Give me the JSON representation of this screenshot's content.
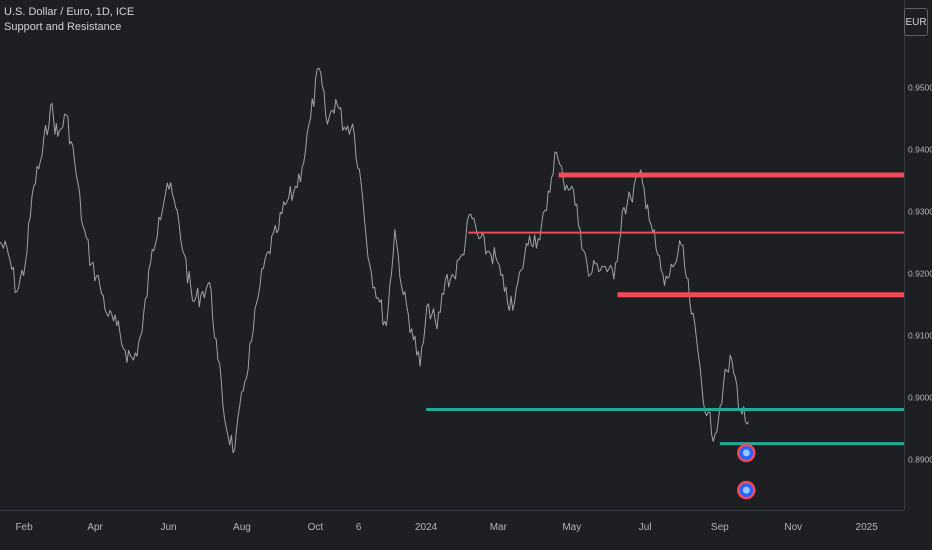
{
  "header": {
    "title": "U.S. Dollar / Euro, 1D, ICE",
    "indicator": "Support and Resistance"
  },
  "currency_button": "EUR",
  "colors": {
    "background": "#1e1f22",
    "price_line": "#9ea1a8",
    "resistance": "#f24a5b",
    "support": "#22ab94",
    "axis_text": "#b2b5be",
    "axis_line": "#363a45"
  },
  "chart_data": {
    "type": "line",
    "ylim": [
      0.8818,
      0.964
    ],
    "y_ticks": [
      0.89,
      0.9,
      0.91,
      0.92,
      0.93,
      0.94,
      0.95
    ],
    "y_tick_labels": [
      "0.8900",
      "0.9000",
      "0.9100",
      "0.9200",
      "0.9300",
      "0.9400",
      "0.9500"
    ],
    "x_range": [
      "2023-01-12",
      "2025-02-01"
    ],
    "x_ticks": [
      {
        "label": "Feb",
        "date": "2023-02-01"
      },
      {
        "label": "Apr",
        "date": "2023-04-01"
      },
      {
        "label": "Jun",
        "date": "2023-06-01"
      },
      {
        "label": "Aug",
        "date": "2023-08-01"
      },
      {
        "label": "Oct",
        "date": "2023-10-01"
      },
      {
        "label": "6",
        "date": "2023-11-06"
      },
      {
        "label": "2024",
        "date": "2024-01-01"
      },
      {
        "label": "Mar",
        "date": "2024-03-01"
      },
      {
        "label": "May",
        "date": "2024-05-01"
      },
      {
        "label": "Jul",
        "date": "2024-07-01"
      },
      {
        "label": "Sep",
        "date": "2024-09-01"
      },
      {
        "label": "Nov",
        "date": "2024-11-01"
      },
      {
        "label": "2025",
        "date": "2025-01-01"
      }
    ],
    "series": [
      {
        "points": [
          [
            "2023-01-12",
            0.925
          ],
          [
            "2023-01-19",
            0.923
          ],
          [
            "2023-01-26",
            0.917
          ],
          [
            "2023-02-02",
            0.9215
          ],
          [
            "2023-02-09",
            0.934
          ],
          [
            "2023-02-16",
            0.939
          ],
          [
            "2023-02-23",
            0.947
          ],
          [
            "2023-03-01",
            0.942
          ],
          [
            "2023-03-08",
            0.9455
          ],
          [
            "2023-03-15",
            0.938
          ],
          [
            "2023-03-22",
            0.9275
          ],
          [
            "2023-03-29",
            0.9215
          ],
          [
            "2023-04-05",
            0.918
          ],
          [
            "2023-04-12",
            0.913
          ],
          [
            "2023-04-19",
            0.9115
          ],
          [
            "2023-04-26",
            0.9075
          ],
          [
            "2023-05-03",
            0.906
          ],
          [
            "2023-05-10",
            0.9105
          ],
          [
            "2023-05-17",
            0.9215
          ],
          [
            "2023-05-24",
            0.929
          ],
          [
            "2023-05-31",
            0.9345
          ],
          [
            "2023-06-07",
            0.9305
          ],
          [
            "2023-06-14",
            0.923
          ],
          [
            "2023-06-21",
            0.9155
          ],
          [
            "2023-06-28",
            0.9165
          ],
          [
            "2023-07-05",
            0.9185
          ],
          [
            "2023-07-12",
            0.906
          ],
          [
            "2023-07-19",
            0.895
          ],
          [
            "2023-07-26",
            0.8915
          ],
          [
            "2023-08-02",
            0.901
          ],
          [
            "2023-08-09",
            0.909
          ],
          [
            "2023-08-16",
            0.918
          ],
          [
            "2023-08-23",
            0.9235
          ],
          [
            "2023-08-30",
            0.9265
          ],
          [
            "2023-09-06",
            0.931
          ],
          [
            "2023-09-13",
            0.933
          ],
          [
            "2023-09-20",
            0.937
          ],
          [
            "2023-09-27",
            0.945
          ],
          [
            "2023-10-04",
            0.953
          ],
          [
            "2023-10-11",
            0.944
          ],
          [
            "2023-10-18",
            0.948
          ],
          [
            "2023-10-25",
            0.9435
          ],
          [
            "2023-11-01",
            0.944
          ],
          [
            "2023-11-08",
            0.9345
          ],
          [
            "2023-11-15",
            0.9215
          ],
          [
            "2023-11-22",
            0.916
          ],
          [
            "2023-11-29",
            0.9115
          ],
          [
            "2023-12-06",
            0.927
          ],
          [
            "2023-12-13",
            0.9165
          ],
          [
            "2023-12-20",
            0.911
          ],
          [
            "2023-12-27",
            0.905
          ],
          [
            "2024-01-03",
            0.915
          ],
          [
            "2024-01-10",
            0.911
          ],
          [
            "2024-01-17",
            0.919
          ],
          [
            "2024-01-24",
            0.9195
          ],
          [
            "2024-01-31",
            0.923
          ],
          [
            "2024-02-07",
            0.9295
          ],
          [
            "2024-02-14",
            0.9255
          ],
          [
            "2024-02-21",
            0.9235
          ],
          [
            "2024-02-28",
            0.9225
          ],
          [
            "2024-03-06",
            0.917
          ],
          [
            "2024-03-13",
            0.914
          ],
          [
            "2024-03-20",
            0.9205
          ],
          [
            "2024-03-27",
            0.926
          ],
          [
            "2024-04-03",
            0.9255
          ],
          [
            "2024-04-10",
            0.93
          ],
          [
            "2024-04-17",
            0.9395
          ],
          [
            "2024-04-24",
            0.935
          ],
          [
            "2024-05-01",
            0.934
          ],
          [
            "2024-05-08",
            0.927
          ],
          [
            "2024-05-15",
            0.9195
          ],
          [
            "2024-05-22",
            0.9215
          ],
          [
            "2024-05-29",
            0.921
          ],
          [
            "2024-06-05",
            0.919
          ],
          [
            "2024-06-12",
            0.93
          ],
          [
            "2024-06-19",
            0.932
          ],
          [
            "2024-06-26",
            0.936
          ],
          [
            "2024-07-03",
            0.931
          ],
          [
            "2024-07-10",
            0.924
          ],
          [
            "2024-07-17",
            0.918
          ],
          [
            "2024-07-24",
            0.921
          ],
          [
            "2024-07-31",
            0.9245
          ],
          [
            "2024-08-07",
            0.9155
          ],
          [
            "2024-08-14",
            0.907
          ],
          [
            "2024-08-21",
            0.897
          ],
          [
            "2024-08-28",
            0.894
          ],
          [
            "2024-09-04",
            0.902
          ],
          [
            "2024-09-11",
            0.906
          ],
          [
            "2024-09-18",
            0.898
          ],
          [
            "2024-09-25",
            0.896
          ]
        ]
      }
    ],
    "levels": [
      {
        "kind": "resistance",
        "value": 0.9358,
        "start": "2024-04-20",
        "thickness": "thick"
      },
      {
        "kind": "resistance",
        "value": 0.9265,
        "start": "2024-02-05",
        "thickness": "thin"
      },
      {
        "kind": "resistance",
        "value": 0.9165,
        "start": "2024-06-08",
        "thickness": "thick"
      },
      {
        "kind": "support",
        "value": 0.898,
        "start": "2024-01-01",
        "thickness": "medium"
      },
      {
        "kind": "support",
        "value": 0.8925,
        "start": "2024-09-01",
        "thickness": "medium"
      }
    ],
    "markers": [
      {
        "date": "2024-09-23",
        "value": 0.891,
        "icon": "alert-badge-icon"
      },
      {
        "date": "2024-09-23",
        "value": 0.885,
        "icon": "alert-badge-icon"
      }
    ]
  }
}
